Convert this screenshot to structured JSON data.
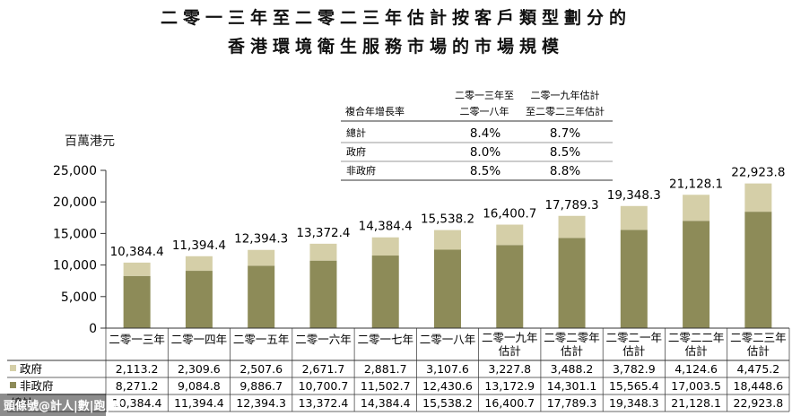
{
  "title": {
    "line1": "二零一三年至二零二三年估計按客戶類型劃分的",
    "line2": "香港環境衛生服務市場的市場規模"
  },
  "unit_label": "百萬港元",
  "watermark": "頭條號@計人|數|跑|墳",
  "colors": {
    "gov": "#d5cfa8",
    "nongov": "#8d8b58",
    "line": "#333333"
  },
  "cagr_table": {
    "header_label": "複合年增長率",
    "col1": [
      "二零一三年至",
      "二零一八年"
    ],
    "col2": [
      "二零一九年估計",
      "至二零二三年估計"
    ],
    "rows": [
      {
        "label": "總計",
        "v1": "8.4%",
        "v2": "8.7%"
      },
      {
        "label": "政府",
        "v1": "8.0%",
        "v2": "8.5%"
      },
      {
        "label": "非政府",
        "v1": "8.5%",
        "v2": "8.8%"
      }
    ]
  },
  "chart_data": {
    "type": "bar",
    "stacked": true,
    "title": "二零一三年至二零二三年估計按客戶類型劃分的香港環境衛生服務市場的市場規模",
    "ylabel": "百萬港元",
    "ylim": [
      0,
      25000
    ],
    "yticks": [
      "0",
      "5,000",
      "10,000",
      "15,000",
      "20,000",
      "25,000"
    ],
    "ytick_values": [
      0,
      5000,
      10000,
      15000,
      20000,
      25000
    ],
    "categories": [
      [
        "二零一三年"
      ],
      [
        "二零一四年"
      ],
      [
        "二零一五年"
      ],
      [
        "二零一六年"
      ],
      [
        "二零一七年"
      ],
      [
        "二零一八年"
      ],
      [
        "二零一九年",
        "估計"
      ],
      [
        "二零二零年",
        "估計"
      ],
      [
        "二零二一年",
        "估計"
      ],
      [
        "二零二二年",
        "估計"
      ],
      [
        "二零二三年",
        "估計"
      ]
    ],
    "series": [
      {
        "name": "非政府",
        "values": [
          8271.2,
          9084.8,
          9886.7,
          10700.7,
          11502.7,
          12430.6,
          13172.9,
          14301.1,
          15565.4,
          17003.5,
          18448.6
        ],
        "labels": [
          "8,271.2",
          "9,084.8",
          "9,886.7",
          "10,700.7",
          "11,502.7",
          "12,430.6",
          "13,172.9",
          "14,301.1",
          "15,565.4",
          "17,003.5",
          "18,448.6"
        ]
      },
      {
        "name": "政府",
        "values": [
          2113.2,
          2309.6,
          2507.6,
          2671.7,
          2881.7,
          3107.6,
          3227.8,
          3488.2,
          3782.9,
          4124.6,
          4475.2
        ],
        "labels": [
          "2,113.2",
          "2,309.6",
          "2,507.6",
          "2,671.7",
          "2,881.7",
          "3,107.6",
          "3,227.8",
          "3,488.2",
          "3,782.9",
          "4,124.6",
          "4,475.2"
        ]
      }
    ],
    "totals": [
      10384.4,
      11394.4,
      12394.3,
      13372.4,
      14384.4,
      15538.2,
      16400.7,
      17789.3,
      19348.3,
      21128.1,
      22923.8
    ],
    "total_labels": [
      "10,384.4",
      "11,394.4",
      "12,394.3",
      "13,372.4",
      "14,384.4",
      "15,538.2",
      "16,400.7",
      "17,789.3",
      "19,348.3",
      "21,128.1",
      "22,923.8"
    ],
    "table_rows": [
      {
        "label": "政府",
        "series": 1
      },
      {
        "label": "非政府",
        "series": 0
      },
      {
        "label": "總計",
        "series": -1
      }
    ]
  }
}
